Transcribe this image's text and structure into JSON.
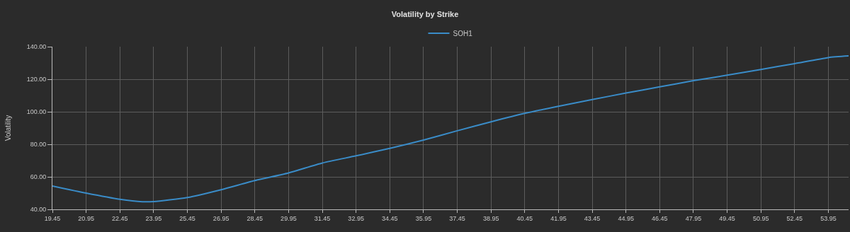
{
  "chart_data": {
    "type": "line",
    "title": "Volatility by Strike",
    "ylabel": "Volatility",
    "x": [
      19.45,
      20.95,
      22.45,
      23.45,
      23.95,
      25.45,
      26.95,
      28.45,
      29.95,
      31.45,
      32.95,
      34.45,
      35.95,
      37.45,
      38.95,
      40.45,
      41.95,
      43.45,
      44.95,
      46.45,
      47.95,
      49.45,
      50.95,
      52.45,
      53.95,
      54.85
    ],
    "series": [
      {
        "name": "SOH1",
        "color": "#3a8cc8",
        "values": [
          54.4,
          50,
          46.2,
          44.7,
          44.8,
          47.3,
          52.1,
          57.7,
          62.4,
          68.5,
          72.9,
          77.5,
          82.6,
          88.3,
          93.8,
          99,
          103.4,
          107.5,
          111.5,
          115.3,
          119.1,
          122.5,
          126,
          129.6,
          133.3,
          134.3
        ]
      }
    ],
    "xlim": [
      19.45,
      54.85
    ],
    "xticks": [
      {
        "value": 19.45,
        "label": "19.45"
      },
      {
        "value": 20.95,
        "label": "20.95"
      },
      {
        "value": 22.45,
        "label": "22.45"
      },
      {
        "value": 23.95,
        "label": "23.95"
      },
      {
        "value": 25.45,
        "label": "25.45"
      },
      {
        "value": 26.95,
        "label": "26.95"
      },
      {
        "value": 28.45,
        "label": "28.45"
      },
      {
        "value": 29.95,
        "label": "29.95"
      },
      {
        "value": 31.45,
        "label": "31.45"
      },
      {
        "value": 32.95,
        "label": "32.95"
      },
      {
        "value": 34.45,
        "label": "34.45"
      },
      {
        "value": 35.95,
        "label": "35.95"
      },
      {
        "value": 37.45,
        "label": "37.45"
      },
      {
        "value": 38.95,
        "label": "38.95"
      },
      {
        "value": 40.45,
        "label": "40.45"
      },
      {
        "value": 41.95,
        "label": "41.95"
      },
      {
        "value": 43.45,
        "label": "43.45"
      },
      {
        "value": 44.95,
        "label": "44.95"
      },
      {
        "value": 46.45,
        "label": "46.45"
      },
      {
        "value": 47.95,
        "label": "47.95"
      },
      {
        "value": 49.45,
        "label": "49.45"
      },
      {
        "value": 50.95,
        "label": "50.95"
      },
      {
        "value": 52.45,
        "label": "52.45"
      },
      {
        "value": 53.95,
        "label": "53.95"
      }
    ],
    "ylim": [
      40,
      140
    ],
    "yticks": [
      {
        "value": 40,
        "label": "40.00"
      },
      {
        "value": 60,
        "label": "60.00"
      },
      {
        "value": 80,
        "label": "80.00"
      },
      {
        "value": 100,
        "label": "100.00"
      },
      {
        "value": 120,
        "label": "120.00"
      },
      {
        "value": 140,
        "label": "140.00"
      }
    ],
    "grid": true,
    "legend": "top",
    "marker": "none",
    "line_style": "solid"
  }
}
